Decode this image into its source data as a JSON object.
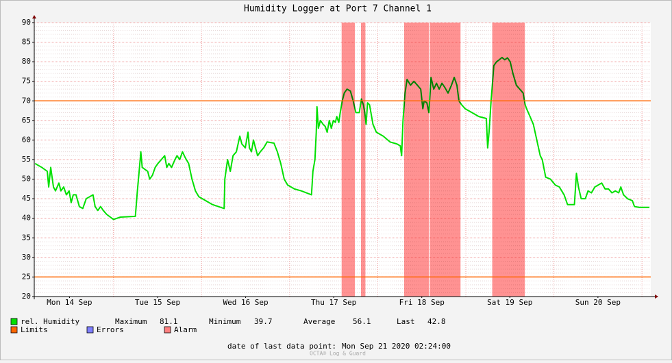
{
  "chart_data": {
    "type": "line",
    "title": "Humidity Logger at Port 7 Channel 1",
    "xlim": [
      14.1,
      21.1
    ],
    "xticks": [
      {
        "value": 14.5,
        "label": "Mon 14 Sep"
      },
      {
        "value": 15.5,
        "label": "Tue 15 Sep"
      },
      {
        "value": 16.5,
        "label": "Wed 16 Sep"
      },
      {
        "value": 17.5,
        "label": "Thu 17 Sep"
      },
      {
        "value": 18.5,
        "label": "Fri 18 Sep"
      },
      {
        "value": 19.5,
        "label": "Sat 19 Sep"
      },
      {
        "value": 20.5,
        "label": "Sun 20 Sep"
      }
    ],
    "xgrid": [
      15,
      16,
      17,
      18,
      19,
      20,
      21
    ],
    "ylim": [
      20,
      90
    ],
    "yticks": [
      20,
      25,
      30,
      35,
      40,
      45,
      50,
      55,
      60,
      65,
      70,
      75,
      80,
      85,
      90
    ],
    "minor_yticks": [
      21,
      22,
      23,
      24,
      26,
      27,
      28,
      29,
      31,
      32,
      33,
      34,
      36,
      37,
      38,
      39,
      41,
      42,
      43,
      44,
      46,
      47,
      48,
      49,
      51,
      52,
      53,
      54,
      56,
      57,
      58,
      59,
      61,
      62,
      63,
      64,
      66,
      67,
      68,
      69,
      71,
      72,
      73,
      74,
      76,
      77,
      78,
      79,
      81,
      82,
      83,
      84,
      86,
      87,
      88,
      89
    ],
    "grid": true,
    "series": [
      {
        "name": "rel. Humidity",
        "color": "#00e000",
        "x": [
          14.109,
          14.186,
          14.248,
          14.264,
          14.287,
          14.318,
          14.341,
          14.38,
          14.403,
          14.434,
          14.465,
          14.496,
          14.519,
          14.543,
          14.574,
          14.612,
          14.651,
          14.69,
          14.767,
          14.791,
          14.822,
          14.853,
          14.884,
          14.922,
          15.0,
          15.078,
          15.248,
          15.271,
          15.295,
          15.31,
          15.326,
          15.388,
          15.411,
          15.442,
          15.473,
          15.504,
          15.543,
          15.581,
          15.605,
          15.628,
          15.659,
          15.698,
          15.721,
          15.752,
          15.783,
          15.814,
          15.853,
          15.891,
          15.93,
          15.969,
          16.047,
          16.124,
          16.256,
          16.264,
          16.295,
          16.326,
          16.357,
          16.395,
          16.434,
          16.457,
          16.496,
          16.527,
          16.543,
          16.566,
          16.589,
          16.612,
          16.636,
          16.667,
          16.705,
          16.744,
          16.822,
          16.86,
          16.899,
          16.938,
          16.977,
          17.054,
          17.132,
          17.248,
          17.264,
          17.287,
          17.302,
          17.31,
          17.326,
          17.349,
          17.38,
          17.403,
          17.426,
          17.45,
          17.473,
          17.496,
          17.519,
          17.535,
          17.558,
          17.574,
          17.597,
          17.62,
          17.651,
          17.69,
          17.721,
          17.752,
          17.791,
          17.814,
          17.837,
          17.853,
          17.868,
          17.884,
          17.907,
          17.946,
          17.984,
          18.062,
          18.14,
          18.217,
          18.256,
          18.271,
          18.287,
          18.31,
          18.333,
          18.372,
          18.411,
          18.45,
          18.488,
          18.512,
          18.527,
          18.558,
          18.581,
          18.605,
          18.636,
          18.667,
          18.698,
          18.729,
          18.76,
          18.798,
          18.837,
          18.868,
          18.899,
          18.922,
          18.953,
          18.992,
          19.07,
          19.147,
          19.233,
          19.248,
          19.264,
          19.287,
          19.318,
          19.349,
          19.38,
          19.411,
          19.442,
          19.473,
          19.504,
          19.535,
          19.574,
          19.612,
          19.651,
          19.674,
          19.69,
          19.729,
          19.767,
          19.806,
          19.845,
          19.868,
          19.907,
          19.961,
          20.016,
          20.062,
          20.116,
          20.155,
          20.233,
          20.256,
          20.279,
          20.31,
          20.357,
          20.388,
          20.426,
          20.465,
          20.504,
          20.543,
          20.581,
          20.62,
          20.659,
          20.698,
          20.736,
          20.76,
          20.791,
          20.837,
          20.891,
          20.915,
          20.969,
          21.047,
          21.085
        ],
        "values": [
          54,
          53,
          52,
          48,
          53,
          48,
          47,
          49,
          47,
          48,
          46,
          47,
          44,
          46,
          46,
          43,
          42.5,
          45,
          46,
          43,
          42,
          43,
          42,
          41,
          39.7,
          40.3,
          40.5,
          47,
          53,
          57,
          53,
          52,
          50,
          51,
          53,
          54,
          55,
          56,
          53,
          54,
          53,
          55,
          56,
          55,
          57,
          55.5,
          54,
          50,
          47,
          45.5,
          44.5,
          43.5,
          42.5,
          50,
          55,
          52,
          56,
          57,
          61,
          59,
          58,
          62,
          58,
          57,
          60,
          58,
          56,
          57,
          58,
          59.5,
          59.2,
          57,
          54,
          50,
          48.5,
          47.5,
          47,
          46,
          52,
          55,
          62,
          68.5,
          63,
          65,
          64,
          63.5,
          62,
          65,
          63,
          65,
          64.5,
          66,
          64.5,
          67,
          70,
          72,
          73,
          72.5,
          70,
          67,
          67,
          70.5,
          69,
          67,
          64,
          69.5,
          69,
          64,
          62,
          61,
          59.5,
          59,
          58.5,
          56,
          65,
          72,
          75.5,
          74,
          75,
          74,
          73,
          68,
          70,
          69.5,
          67,
          76,
          73,
          74.5,
          73,
          74.5,
          73.5,
          72,
          74,
          76,
          74,
          70,
          69,
          68,
          67,
          66,
          65.5,
          58,
          62,
          70,
          79,
          80,
          80.5,
          81.1,
          80.5,
          81,
          80,
          77,
          74,
          73,
          72,
          69,
          68,
          66,
          64,
          60,
          56,
          55,
          50.5,
          50,
          48.5,
          48,
          46,
          43.5,
          43.5,
          51.5,
          48,
          45,
          45,
          47,
          46.5,
          48,
          48.5,
          49,
          47.5,
          47.5,
          46.5,
          47,
          46.5,
          48,
          46,
          45,
          44.5,
          43,
          42.8,
          42.8,
          42.8
        ]
      }
    ],
    "limits": {
      "name": "Limits",
      "color": "#ff6600",
      "values": [
        70,
        25
      ]
    },
    "errors": {
      "name": "Errors",
      "color": "#7f7fff"
    },
    "alarms": {
      "name": "Alarm",
      "color": "#ff7f7f",
      "ranges": [
        [
          17.59,
          17.74
        ],
        [
          17.81,
          17.86
        ],
        [
          18.3,
          18.58
        ],
        [
          18.59,
          18.94
        ],
        [
          19.3,
          19.67
        ]
      ]
    },
    "stats": [
      {
        "label": "Maximum",
        "value": 81.1
      },
      {
        "label": "Minimum",
        "value": 39.7
      },
      {
        "label": "Average",
        "value": 56.1
      },
      {
        "label": "Last",
        "value": 42.8
      }
    ],
    "footer": {
      "label": "date of last data point:",
      "value": "Mon Sep 21 2020 02:24:00"
    },
    "watermark": "OCTA® Log & Guard"
  }
}
